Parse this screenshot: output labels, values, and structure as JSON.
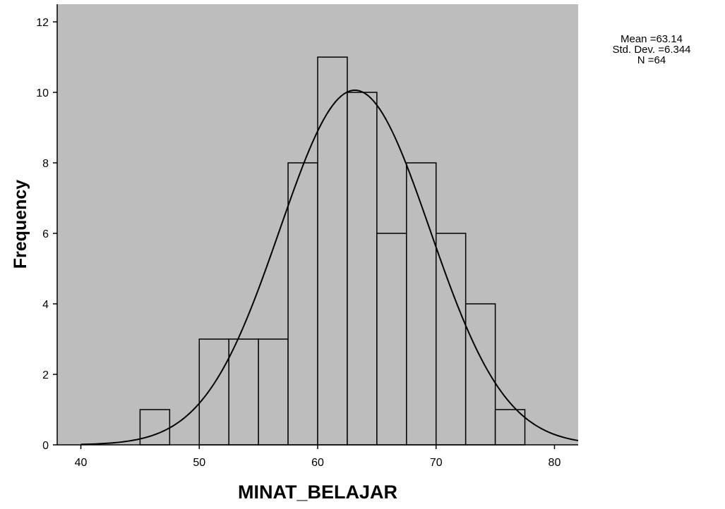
{
  "chart_data": {
    "type": "bar",
    "title": "",
    "xlabel": "MINAT_BELAJAR",
    "ylabel": "Frequency",
    "xlim": [
      38,
      82
    ],
    "ylim": [
      0,
      12.5
    ],
    "x_ticks": [
      "40",
      "50",
      "60",
      "70",
      "80"
    ],
    "x_tick_values": [
      40,
      50,
      60,
      70,
      80
    ],
    "y_ticks": [
      "0",
      "2",
      "4",
      "6",
      "8",
      "10",
      "12"
    ],
    "y_tick_values": [
      0,
      2,
      4,
      6,
      8,
      10,
      12
    ],
    "bin_width": 2.5,
    "bins": [
      {
        "start": 45,
        "end": 47.5,
        "value": 1
      },
      {
        "start": 50,
        "end": 52.5,
        "value": 3
      },
      {
        "start": 52.5,
        "end": 55,
        "value": 3
      },
      {
        "start": 55,
        "end": 57.5,
        "value": 3
      },
      {
        "start": 57.5,
        "end": 60,
        "value": 8
      },
      {
        "start": 60,
        "end": 62.5,
        "value": 11
      },
      {
        "start": 62.5,
        "end": 65,
        "value": 10
      },
      {
        "start": 65,
        "end": 67.5,
        "value": 6
      },
      {
        "start": 67.5,
        "end": 70,
        "value": 8
      },
      {
        "start": 70,
        "end": 72.5,
        "value": 6
      },
      {
        "start": 72.5,
        "end": 75,
        "value": 4
      },
      {
        "start": 75,
        "end": 77.5,
        "value": 1
      }
    ],
    "normal_curve": {
      "mean": 63.14,
      "sd": 6.344,
      "n": 64
    },
    "stats_labels": [
      "Mean =63.14",
      "Std. Dev. =6.344",
      "N =64"
    ],
    "grid": false,
    "legend": "none",
    "colors": {
      "plot_background": "#bdbdbd",
      "bar_fill": "#bdbdbd",
      "bar_edge": "#000000",
      "curve": "#000000"
    }
  }
}
